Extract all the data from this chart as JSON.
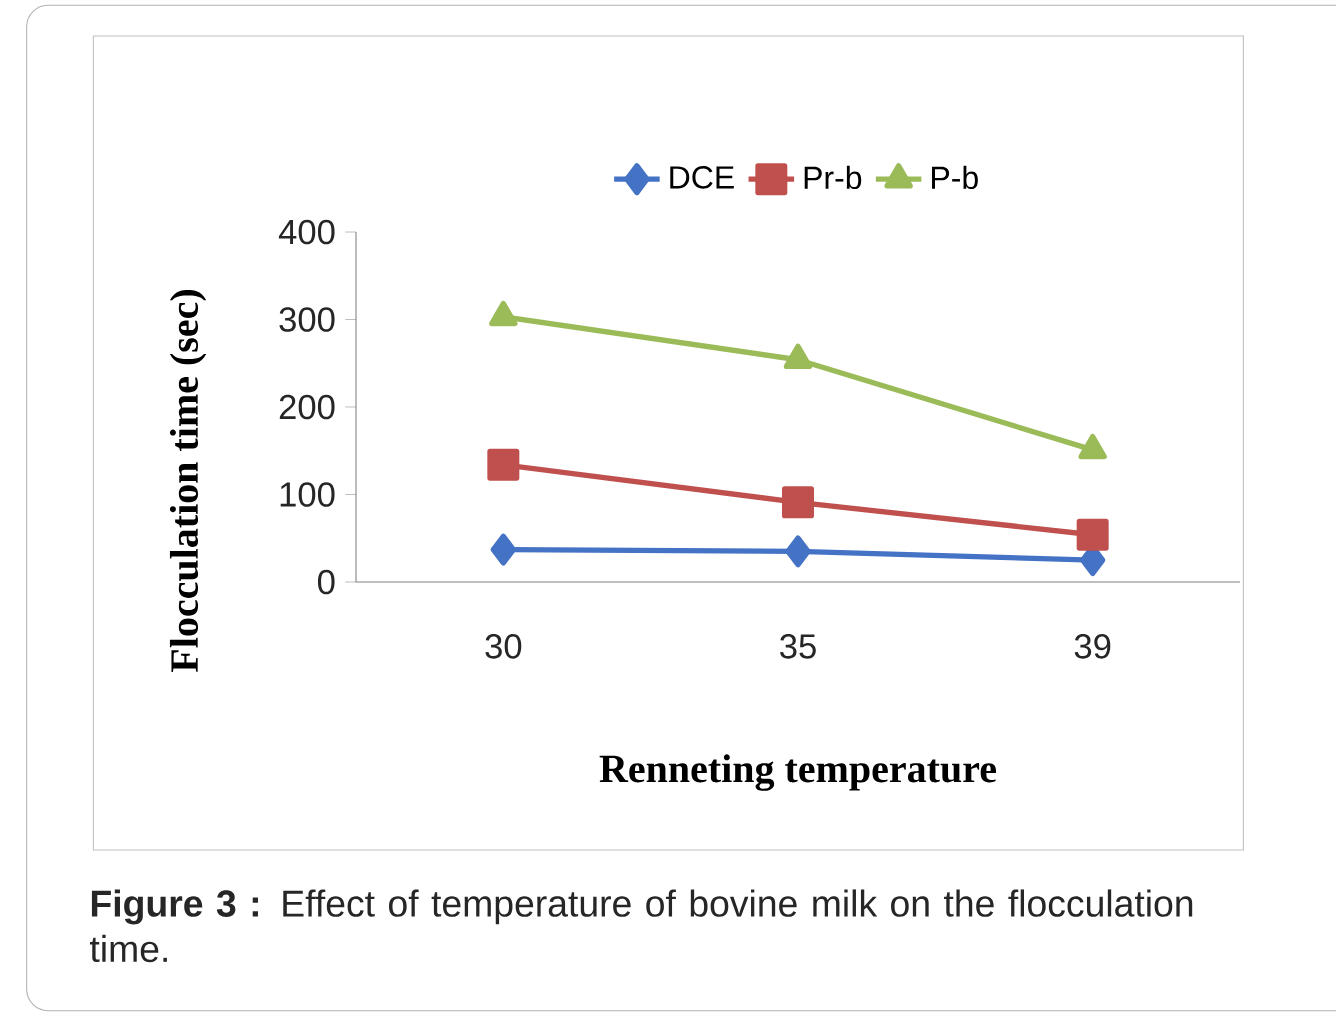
{
  "chart_data": {
    "type": "line",
    "categories": [
      "30",
      "35",
      "39"
    ],
    "xlabel": "Renneting temperature",
    "ylabel": "Flocculation time (sec)",
    "ylim": [
      0,
      400
    ],
    "yticks": [
      0,
      100,
      200,
      300,
      400
    ],
    "legend": "top",
    "grid": false,
    "annotations": [
      "**Figure 3 :** Effect of temperature of bovine milk on the flocculation time."
    ],
    "series": [
      {
        "name": "DCE",
        "color": "#4472c4",
        "marker": "diamond",
        "values": [
          37,
          35,
          25
        ]
      },
      {
        "name": "Pr-b",
        "color": "#c0504d",
        "marker": "square",
        "values": [
          134,
          91,
          54
        ]
      },
      {
        "name": "P-b",
        "color": "#9bbb59",
        "marker": "triangle",
        "values": [
          303,
          254,
          151
        ]
      }
    ]
  }
}
